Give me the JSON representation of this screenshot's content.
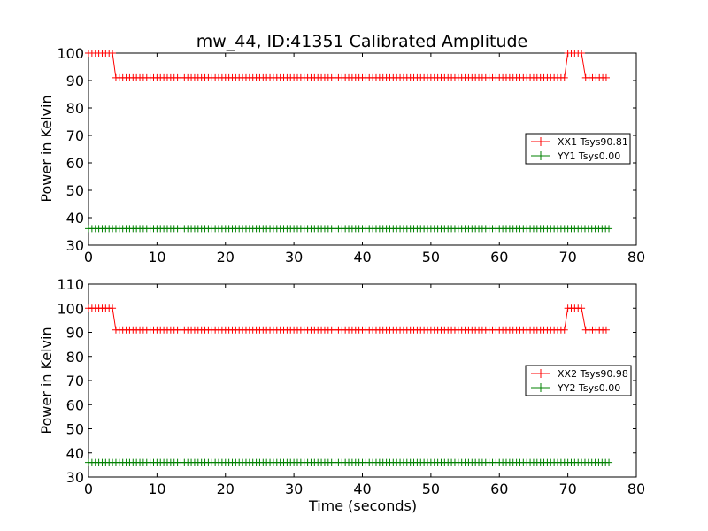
{
  "figure": {
    "title": "mw_44, ID:41351 Calibrated Amplitude"
  },
  "chart_data": [
    {
      "type": "line",
      "title": "mw_44, ID:41351 Calibrated Amplitude",
      "xlabel": "",
      "ylabel": "Power in Kelvin",
      "xlim": [
        0,
        80
      ],
      "ylim": [
        30,
        100
      ],
      "xticks": [
        "0",
        "10",
        "20",
        "30",
        "40",
        "50",
        "60",
        "70",
        "80"
      ],
      "yticks": [
        "30",
        "40",
        "50",
        "60",
        "70",
        "80",
        "90",
        "100"
      ],
      "grid": false,
      "legend_position": "center-right",
      "marker": "+",
      "series": [
        {
          "name": "XX1 Tsys90.81",
          "color": "#ff0000",
          "segments": [
            {
              "x_start": 0.0,
              "x_end": 3.8,
              "y": 100
            },
            {
              "x_start": 4.0,
              "x_end": 69.8,
              "y": 91
            },
            {
              "x_start": 70.0,
              "x_end": 72.4,
              "y": 100
            },
            {
              "x_start": 72.6,
              "x_end": 76.0,
              "y": 91
            }
          ]
        },
        {
          "name": "YY1 Tsys0.00",
          "color": "#008000",
          "segments": [
            {
              "x_start": 0.0,
              "x_end": 76.0,
              "y": 36
            }
          ]
        }
      ]
    },
    {
      "type": "line",
      "title": "",
      "xlabel": "Time (seconds)",
      "ylabel": "Power in Kelvin",
      "xlim": [
        0,
        80
      ],
      "ylim": [
        30,
        110
      ],
      "xticks": [
        "0",
        "10",
        "20",
        "30",
        "40",
        "50",
        "60",
        "70",
        "80"
      ],
      "yticks": [
        "30",
        "40",
        "50",
        "60",
        "70",
        "80",
        "90",
        "100",
        "110"
      ],
      "grid": false,
      "legend_position": "center-right",
      "marker": "+",
      "series": [
        {
          "name": "XX2 Tsys90.98",
          "color": "#ff0000",
          "segments": [
            {
              "x_start": 0.0,
              "x_end": 3.8,
              "y": 100
            },
            {
              "x_start": 4.0,
              "x_end": 69.8,
              "y": 91
            },
            {
              "x_start": 70.0,
              "x_end": 72.4,
              "y": 100
            },
            {
              "x_start": 72.6,
              "x_end": 76.0,
              "y": 91
            }
          ]
        },
        {
          "name": "YY2 Tsys0.00",
          "color": "#008000",
          "segments": [
            {
              "x_start": 0.0,
              "x_end": 76.0,
              "y": 36
            }
          ]
        }
      ]
    }
  ]
}
